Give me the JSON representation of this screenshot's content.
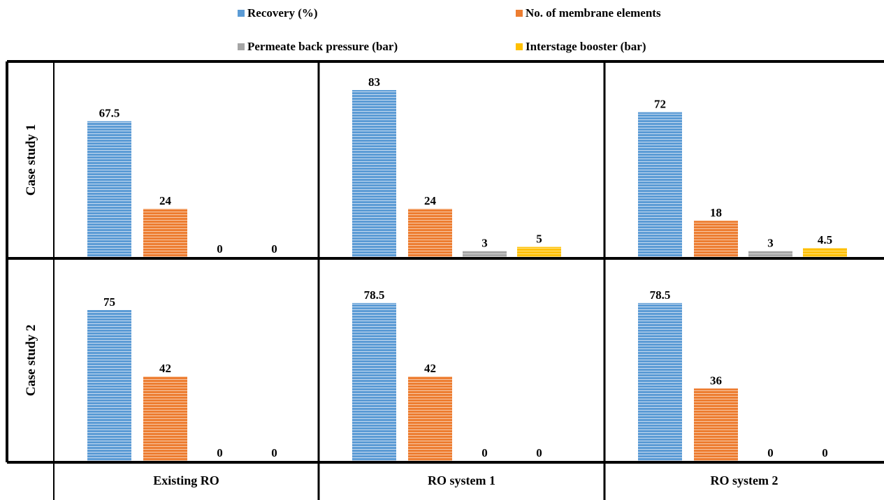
{
  "chart_data": {
    "type": "bar",
    "series": [
      {
        "name": "Recovery (%)",
        "color": "#5b9bd5"
      },
      {
        "name": "No. of membrane elements",
        "color": "#ed7d31"
      },
      {
        "name": "Permeate back pressure (bar)",
        "color": "#a5a5a5"
      },
      {
        "name": "Interstage booster (bar)",
        "color": "#ffc000"
      }
    ],
    "columns": [
      "Existing RO",
      "RO system 1",
      "RO system 2"
    ],
    "rows": [
      "Case study 1",
      "Case study 2"
    ],
    "panels": [
      [
        {
          "values": [
            67.5,
            24,
            0,
            0
          ],
          "labels": [
            "67.5",
            "24",
            "0",
            "0"
          ]
        },
        {
          "values": [
            83,
            24,
            3,
            5
          ],
          "labels": [
            "83",
            "24",
            "3",
            "5"
          ]
        },
        {
          "values": [
            72,
            18,
            3,
            4.5
          ],
          "labels": [
            "72",
            "18",
            "3",
            "4.5"
          ]
        }
      ],
      [
        {
          "values": [
            75,
            42,
            0,
            0
          ],
          "labels": [
            "75",
            "42",
            "0",
            "0"
          ]
        },
        {
          "values": [
            78.5,
            42,
            0,
            0
          ],
          "labels": [
            "78.5",
            "42",
            "0",
            "0"
          ]
        },
        {
          "values": [
            78.5,
            36,
            0,
            0
          ],
          "labels": [
            "78.5",
            "36",
            "0",
            "0"
          ]
        }
      ]
    ],
    "legend_position": "top",
    "grid": false
  }
}
